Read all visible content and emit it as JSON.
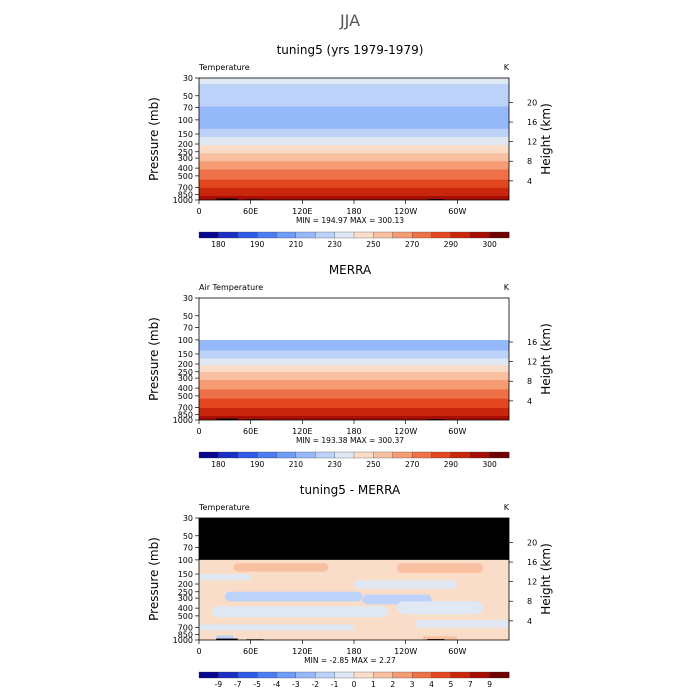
{
  "figure": {
    "title": "JJA",
    "x_ticks": [
      "0",
      "60E",
      "120E",
      "180",
      "120W",
      "60W"
    ],
    "pressure_ticks": [
      "30",
      "50",
      "70",
      "100",
      "150",
      "200",
      "250",
      "300",
      "400",
      "500",
      "700",
      "850",
      "1000"
    ],
    "height_ticks": [
      "20",
      "16",
      "12",
      "8",
      "4"
    ],
    "y_left_label": "Pressure (mb)",
    "y_right_label": "Height (km)",
    "units": "K"
  },
  "chart_data": [
    {
      "type": "heatmap",
      "title": "tuning5 (yrs 1979-1979)",
      "variable": "Temperature",
      "units": "K",
      "stats": "MIN = 194.97   MAX = 300.13",
      "ylim": [
        30,
        1000
      ],
      "xlim": [
        "0",
        "360"
      ],
      "y_scale": "log",
      "top_blank_pressure": null,
      "colorbar_labels": [
        "180",
        "190",
        "210",
        "230",
        "250",
        "270",
        "290",
        "300"
      ],
      "colorbar_colors": [
        "#08088e",
        "#1b2fc7",
        "#2f5be6",
        "#4a7ef2",
        "#6e9cf6",
        "#95b9f8",
        "#bcd2f8",
        "#e0e8f4",
        "#f9ddc8",
        "#f8c0a0",
        "#f59c75",
        "#ef7148",
        "#e2471f",
        "#c9260c",
        "#a60e04",
        "#6e0000"
      ],
      "profile": [
        {
          "p": 30,
          "v": 222
        },
        {
          "p": 45,
          "v": 218
        },
        {
          "p": 55,
          "v": 214
        },
        {
          "p": 75,
          "v": 208
        },
        {
          "p": 95,
          "v": 202
        },
        {
          "p": 115,
          "v": 205
        },
        {
          "p": 140,
          "v": 212
        },
        {
          "p": 175,
          "v": 222
        },
        {
          "p": 215,
          "v": 232
        },
        {
          "p": 265,
          "v": 242
        },
        {
          "p": 320,
          "v": 250
        },
        {
          "p": 400,
          "v": 258
        },
        {
          "p": 480,
          "v": 265
        },
        {
          "p": 580,
          "v": 272
        },
        {
          "p": 680,
          "v": 279
        },
        {
          "p": 780,
          "v": 285
        },
        {
          "p": 880,
          "v": 290
        },
        {
          "p": 960,
          "v": 296
        }
      ],
      "anomalies": []
    },
    {
      "type": "heatmap",
      "title": "MERRA",
      "variable": "Air Temperature",
      "units": "K",
      "stats": "MIN = 193.38   MAX = 300.37",
      "ylim": [
        30,
        1000
      ],
      "xlim": [
        "0",
        "360"
      ],
      "y_scale": "log",
      "top_blank_pressure": 100,
      "colorbar_labels": [
        "180",
        "190",
        "210",
        "230",
        "250",
        "270",
        "290",
        "300"
      ],
      "colorbar_colors": [
        "#08088e",
        "#1b2fc7",
        "#2f5be6",
        "#4a7ef2",
        "#6e9cf6",
        "#95b9f8",
        "#bcd2f8",
        "#e0e8f4",
        "#f9ddc8",
        "#f8c0a0",
        "#f59c75",
        "#ef7148",
        "#e2471f",
        "#c9260c",
        "#a60e04",
        "#6e0000"
      ],
      "profile": [
        {
          "p": 105,
          "v": 202
        },
        {
          "p": 135,
          "v": 210
        },
        {
          "p": 170,
          "v": 220
        },
        {
          "p": 215,
          "v": 232
        },
        {
          "p": 265,
          "v": 242
        },
        {
          "p": 320,
          "v": 250
        },
        {
          "p": 400,
          "v": 258
        },
        {
          "p": 480,
          "v": 265
        },
        {
          "p": 580,
          "v": 272
        },
        {
          "p": 680,
          "v": 279
        },
        {
          "p": 780,
          "v": 285
        },
        {
          "p": 880,
          "v": 290
        },
        {
          "p": 960,
          "v": 296
        }
      ],
      "anomalies": []
    },
    {
      "type": "heatmap",
      "title": "tuning5 - MERRA",
      "variable": "Temperature",
      "units": "K",
      "stats": "MIN =  -2.85   MAX =    2.27",
      "ylim": [
        30,
        1000
      ],
      "xlim": [
        "0",
        "360"
      ],
      "y_scale": "log",
      "top_blank_pressure": 100,
      "colorbar_labels": [
        "-9",
        "-7",
        "-5",
        "-4",
        "-3",
        "-2",
        "-1",
        "0",
        "1",
        "2",
        "3",
        "4",
        "5",
        "7",
        "9"
      ],
      "colorbar_colors": [
        "#08088e",
        "#1b2fc7",
        "#2f5be6",
        "#4a7ef2",
        "#6e9cf6",
        "#95b9f8",
        "#bcd2f8",
        "#e0e8f4",
        "#f9ddc8",
        "#f8c0a0",
        "#f59c75",
        "#ef7148",
        "#e2471f",
        "#c9260c",
        "#a60e04",
        "#6e0000"
      ],
      "background_anomaly": "0 to 1 K",
      "anomalies": [
        {
          "lon": [
            40,
            150
          ],
          "p": [
            110,
            140
          ],
          "level": "1 to 2 K"
        },
        {
          "lon": [
            230,
            330
          ],
          "p": [
            110,
            145
          ],
          "level": "1 to 2 K"
        },
        {
          "lon": [
            0,
            60
          ],
          "p": [
            150,
            180
          ],
          "level": "-1 to 0 K"
        },
        {
          "lon": [
            180,
            300
          ],
          "p": [
            180,
            230
          ],
          "level": "-1 to 0 K"
        },
        {
          "lon": [
            30,
            190
          ],
          "p": [
            250,
            330
          ],
          "level": "-2 to -1 K"
        },
        {
          "lon": [
            190,
            270
          ],
          "p": [
            270,
            360
          ],
          "level": "-2 to -1 K"
        },
        {
          "lon": [
            15,
            220
          ],
          "p": [
            380,
            520
          ],
          "level": "-1 to 0 K"
        },
        {
          "lon": [
            230,
            330
          ],
          "p": [
            330,
            480
          ],
          "level": "-1 to 0 K"
        },
        {
          "lon": [
            0,
            180
          ],
          "p": [
            640,
            760
          ],
          "level": "-1 to 0 K"
        },
        {
          "lon": [
            250,
            360
          ],
          "p": [
            560,
            700
          ],
          "level": "-1 to 0 K"
        },
        {
          "lon": [
            20,
            40
          ],
          "p": [
            880,
            980
          ],
          "level": "-2 to -1 K"
        },
        {
          "lon": [
            260,
            300
          ],
          "p": [
            900,
            990
          ],
          "level": "1 to 2 K"
        }
      ]
    }
  ]
}
